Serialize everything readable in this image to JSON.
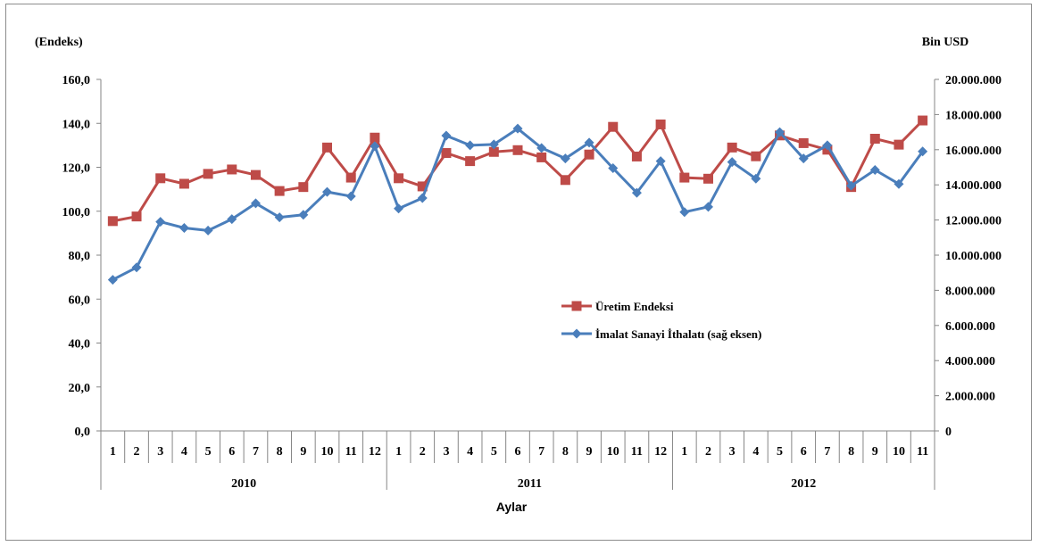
{
  "chart_data": {
    "type": "line",
    "ylabel_left": "(Endeks)",
    "ylabel_right": "Bin USD",
    "xlabel": "Aylar",
    "ylim_left": [
      0,
      160
    ],
    "ylim_right": [
      0,
      20000000
    ],
    "yticks_left": [
      "0,0",
      "20,0",
      "40,0",
      "60,0",
      "80,0",
      "100,0",
      "120,0",
      "140,0",
      "160,0"
    ],
    "yticks_right": [
      "0",
      "2.000.000",
      "4.000.000",
      "6.000.000",
      "8.000.000",
      "10.000.000",
      "12.000.000",
      "14.000.000",
      "16.000.000",
      "18.000.000",
      "20.000.000"
    ],
    "years": [
      {
        "label": "2010",
        "months": [
          "1",
          "2",
          "3",
          "4",
          "5",
          "6",
          "7",
          "8",
          "9",
          "10",
          "11",
          "12"
        ]
      },
      {
        "label": "2011",
        "months": [
          "1",
          "2",
          "3",
          "4",
          "5",
          "6",
          "7",
          "8",
          "9",
          "10",
          "11",
          "12"
        ]
      },
      {
        "label": "2012",
        "months": [
          "1",
          "2",
          "3",
          "4",
          "5",
          "6",
          "7",
          "8",
          "9",
          "10",
          "11"
        ]
      }
    ],
    "legend_position": "center-right",
    "grid": false,
    "series": [
      {
        "name": "Üretim Endeksi",
        "axis": "left",
        "color": "#be4b48",
        "marker": "square",
        "values": [
          95.5,
          97.6,
          115.0,
          112.5,
          117.0,
          119.0,
          116.5,
          109.2,
          111.0,
          129.0,
          115.3,
          133.5,
          115.0,
          111.3,
          126.5,
          122.8,
          127.0,
          127.8,
          124.5,
          114.2,
          125.8,
          138.4,
          124.9,
          139.5,
          115.3,
          114.8,
          129.0,
          125.0,
          134.5,
          131.0,
          128.0,
          111.0,
          133.0,
          130.3,
          141.3
        ]
      },
      {
        "name": "İmalat Sanayi İthalatı (sağ eksen)",
        "axis": "right",
        "color": "#4a7ebb",
        "marker": "diamond",
        "values": [
          8600000,
          9300000,
          11900000,
          11550000,
          11400000,
          12050000,
          12950000,
          12150000,
          12300000,
          13600000,
          13350000,
          16200000,
          12650000,
          13250000,
          16800000,
          16250000,
          16300000,
          17200000,
          16100000,
          15500000,
          16400000,
          14950000,
          13550000,
          15350000,
          12450000,
          12750000,
          15300000,
          14350000,
          17000000,
          15500000,
          16250000,
          13950000,
          14850000,
          14050000,
          15900000
        ]
      }
    ]
  }
}
